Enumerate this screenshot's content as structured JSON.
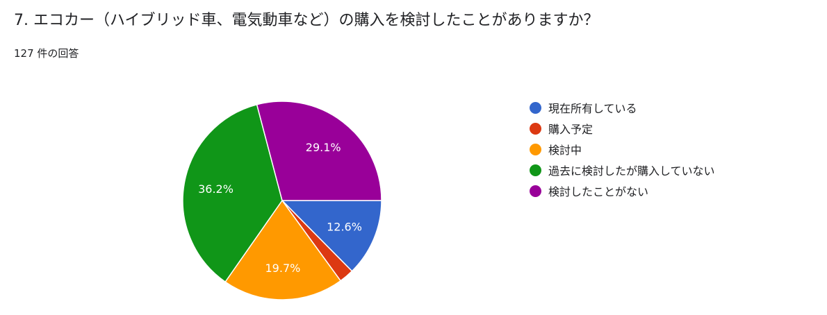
{
  "question": {
    "title": "7. エコカー（ハイブリッド車、電気動車など）の購入を検討したことがありますか？",
    "response_count": "127 件の回答"
  },
  "chart_data": {
    "type": "pie",
    "categories": [
      "現在所有している",
      "購入予定",
      "検討中",
      "過去に検討したが購入していない",
      "検討したことがない"
    ],
    "values": [
      12.6,
      2.4,
      19.7,
      36.2,
      29.1
    ],
    "labels": [
      "12.6%",
      "",
      "19.7%",
      "36.2%",
      "29.1%"
    ],
    "colors": [
      "#3366cc",
      "#dc3912",
      "#ff9900",
      "#109618",
      "#990099"
    ],
    "start_angle_deg": 90,
    "direction": "clockwise",
    "legend_position": "right"
  }
}
